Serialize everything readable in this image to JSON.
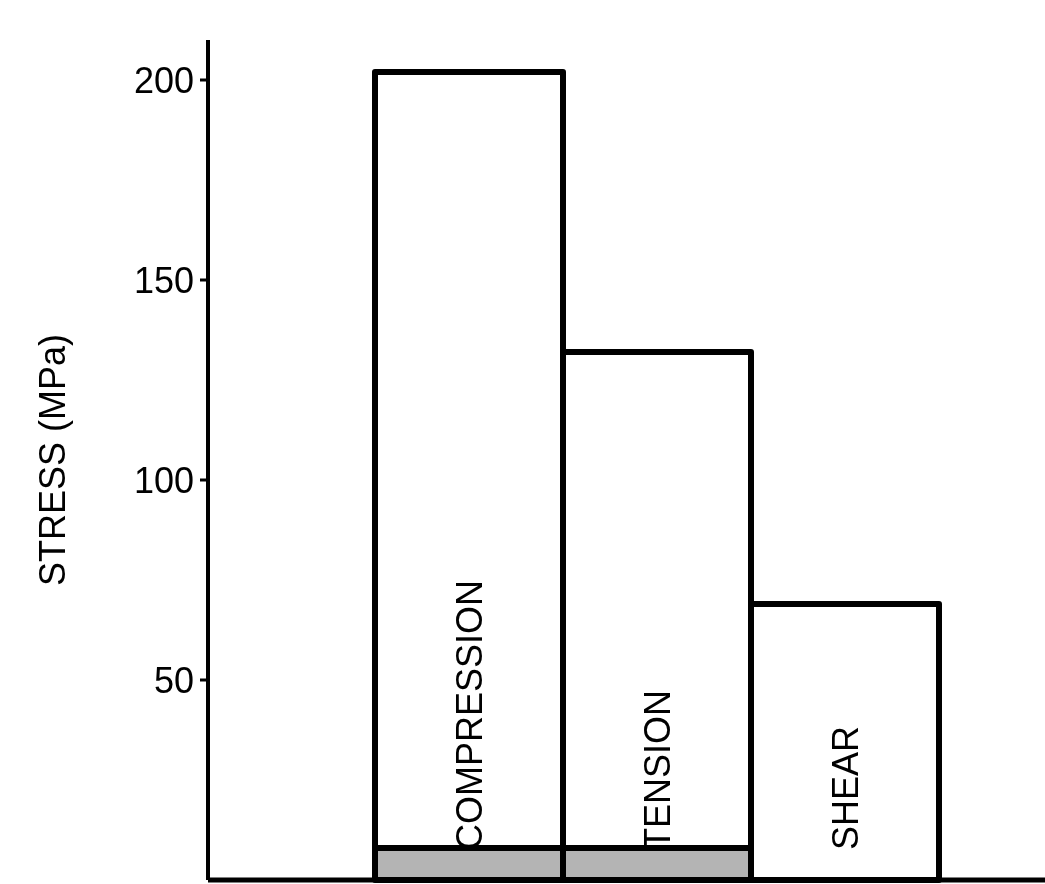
{
  "chart_data": {
    "type": "bar",
    "ylabel": "STRESS (MPa)",
    "categories": [
      "COMPRESSION",
      "TENSION",
      "SHEAR"
    ],
    "stacked": true,
    "series": [
      {
        "color": "#b4b4b4",
        "values": [
          8,
          8,
          0
        ]
      },
      {
        "color": "#ffffff",
        "values": [
          194,
          124,
          69
        ]
      }
    ],
    "ylim": [
      0,
      210
    ],
    "yticks": [
      50,
      100,
      150,
      200
    ]
  }
}
